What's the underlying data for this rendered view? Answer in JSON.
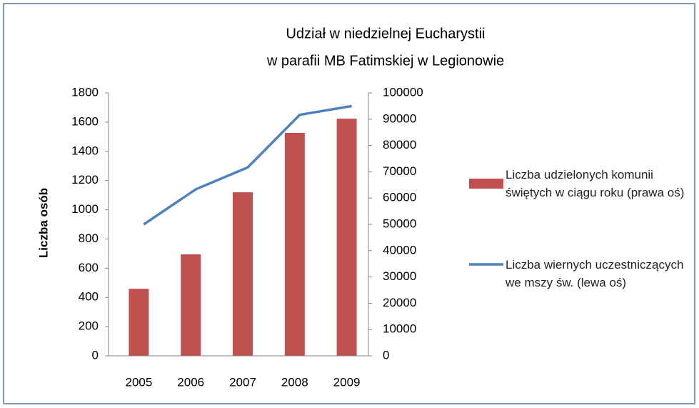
{
  "chart_data": {
    "type": "bar-line",
    "title": [
      "Udział w niedzielnej Eucharystii",
      "w parafii MB Fatimskiej w Legionowie"
    ],
    "ylabel": "Liczba osób",
    "categories": [
      "2005",
      "2006",
      "2007",
      "2008",
      "2009"
    ],
    "series": [
      {
        "name": "Liczba udzielonych komunii świętych w ciągu roku (prawa oś)",
        "type": "bar",
        "axis": "y2",
        "color": "#c0504d",
        "values": [
          25500,
          38600,
          62200,
          84800,
          90200
        ]
      },
      {
        "name": "Liczba wiernych uczestniczących we mszy św. (lewa oś)",
        "type": "line",
        "color": "#4f81bd",
        "values": [
          900,
          1140,
          1290,
          1650,
          1710
        ]
      }
    ],
    "ylim": [
      0,
      1800
    ],
    "yticks": [
      0,
      200,
      400,
      600,
      800,
      1000,
      1200,
      1400,
      1600,
      1800
    ],
    "y2lim": [
      0,
      100000
    ],
    "y2ticks": [
      0,
      10000,
      20000,
      30000,
      40000,
      50000,
      60000,
      70000,
      80000,
      90000,
      100000
    ],
    "legend": "right"
  }
}
